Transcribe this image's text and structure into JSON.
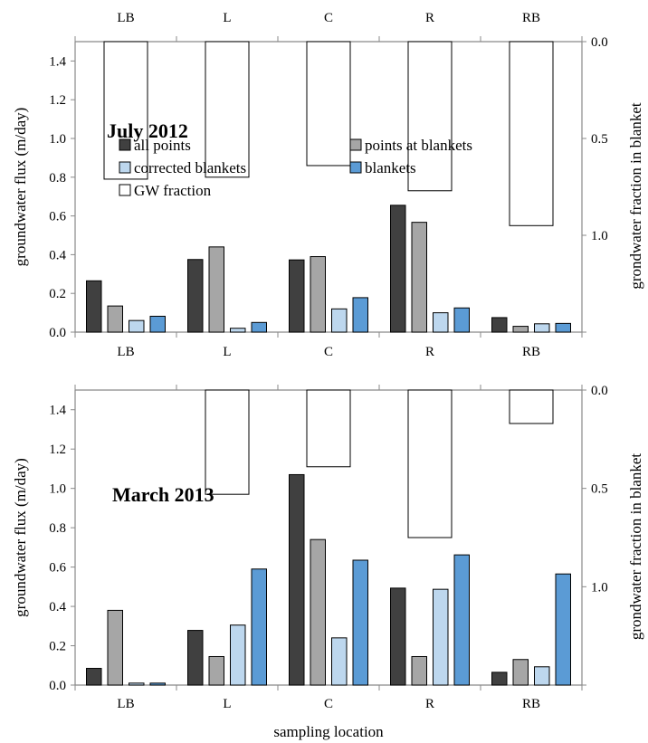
{
  "chart_data": [
    {
      "type": "bar",
      "title": "July 2012",
      "categories": [
        "LB",
        "L",
        "C",
        "R",
        "RB"
      ],
      "ylabel": "groundwater flux (m/day)",
      "ylim": [
        0,
        1.5
      ],
      "yticks": [
        "0.0",
        "0.2",
        "0.4",
        "0.6",
        "0.8",
        "1.0",
        "1.2",
        "1.4"
      ],
      "y2label": "grondwater fraction in blanket",
      "y2lim": [
        0,
        1.5
      ],
      "y2ticks": [
        "0.0",
        "0.5",
        "1.0"
      ],
      "y2_reversed": true,
      "series": [
        {
          "name": "all points",
          "color": "#404040",
          "values": [
            0.265,
            0.375,
            0.373,
            0.655,
            0.075
          ]
        },
        {
          "name": "points at blankets",
          "color": "#a6a6a6",
          "values": [
            0.135,
            0.44,
            0.39,
            0.567,
            0.03
          ]
        },
        {
          "name": "corrected blankets",
          "color": "#bdd7ee",
          "values": [
            0.06,
            0.02,
            0.12,
            0.1,
            0.043
          ]
        },
        {
          "name": "blankets",
          "color": "#5b9bd5",
          "values": [
            0.082,
            0.05,
            0.178,
            0.125,
            0.045
          ]
        },
        {
          "name": "GW fraction",
          "color": "#ffffff",
          "axis": "right",
          "values": [
            0.71,
            0.7,
            0.64,
            0.77,
            0.95
          ]
        }
      ],
      "legend": "inside-top"
    },
    {
      "type": "bar",
      "title": "March 2013",
      "categories": [
        "LB",
        "L",
        "C",
        "R",
        "RB"
      ],
      "xlabel": "sampling location",
      "ylabel": "groundwater flux (m/day)",
      "ylim": [
        0,
        1.5
      ],
      "yticks": [
        "0.0",
        "0.2",
        "0.4",
        "0.6",
        "0.8",
        "1.0",
        "1.2",
        "1.4"
      ],
      "y2label": "grondwater fraction in blanket",
      "y2lim": [
        0,
        1.5
      ],
      "y2ticks": [
        "0.0",
        "0.5",
        "1.0"
      ],
      "y2_reversed": true,
      "series": [
        {
          "name": "all points",
          "color": "#404040",
          "values": [
            0.085,
            0.278,
            1.07,
            0.493,
            0.065
          ]
        },
        {
          "name": "points at blankets",
          "color": "#a6a6a6",
          "values": [
            0.38,
            0.145,
            0.74,
            0.145,
            0.13
          ]
        },
        {
          "name": "corrected blankets",
          "color": "#bdd7ee",
          "values": [
            0.01,
            0.305,
            0.24,
            0.487,
            0.093
          ]
        },
        {
          "name": "blankets",
          "color": "#5b9bd5",
          "values": [
            0.01,
            0.59,
            0.635,
            0.662,
            0.565
          ]
        },
        {
          "name": "GW fraction",
          "color": "#ffffff",
          "axis": "right",
          "values": [
            0,
            0.53,
            0.39,
            0.75,
            0.17
          ]
        }
      ]
    }
  ]
}
